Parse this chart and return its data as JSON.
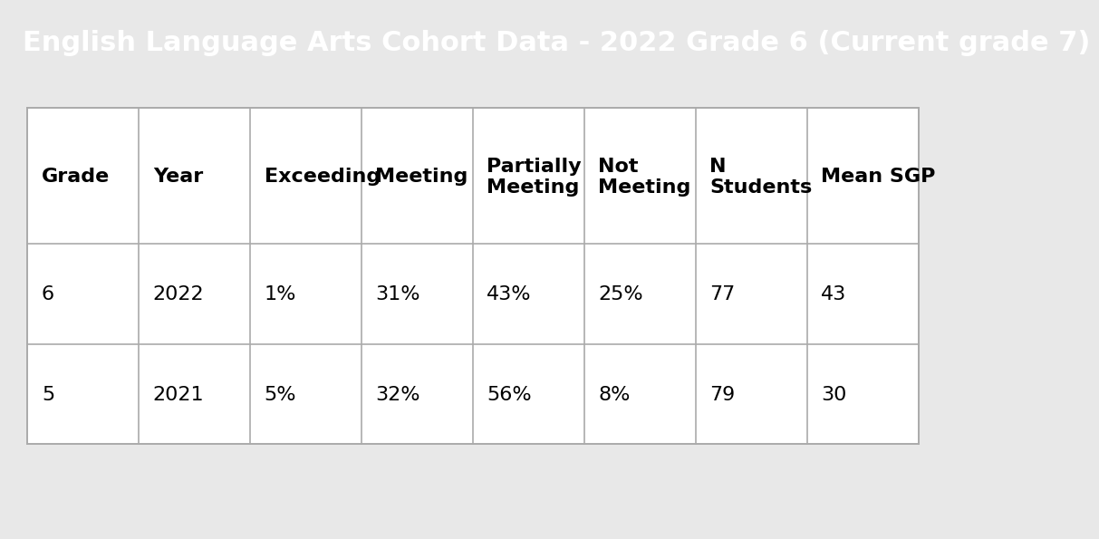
{
  "title": "English Language Arts Cohort Data - 2022 Grade 6 (Current grade 7)",
  "title_bg_color": "#1c5cc7",
  "title_text_color": "#ffffff",
  "title_fontsize": 22,
  "background_color": "#e8e8e8",
  "columns": [
    "Grade",
    "Year",
    "Exceeding",
    "Meeting",
    "Partially\nMeeting",
    "Not\nMeeting",
    "N\nStudents",
    "Mean SGP"
  ],
  "rows": [
    [
      "6",
      "2022",
      "1%",
      "31%",
      "43%",
      "25%",
      "77",
      "43"
    ],
    [
      "5",
      "2021",
      "5%",
      "32%",
      "56%",
      "8%",
      "79",
      "30"
    ]
  ],
  "header_fontsize": 16,
  "cell_fontsize": 16,
  "line_color": "#aaaaaa",
  "line_width": 1.2
}
